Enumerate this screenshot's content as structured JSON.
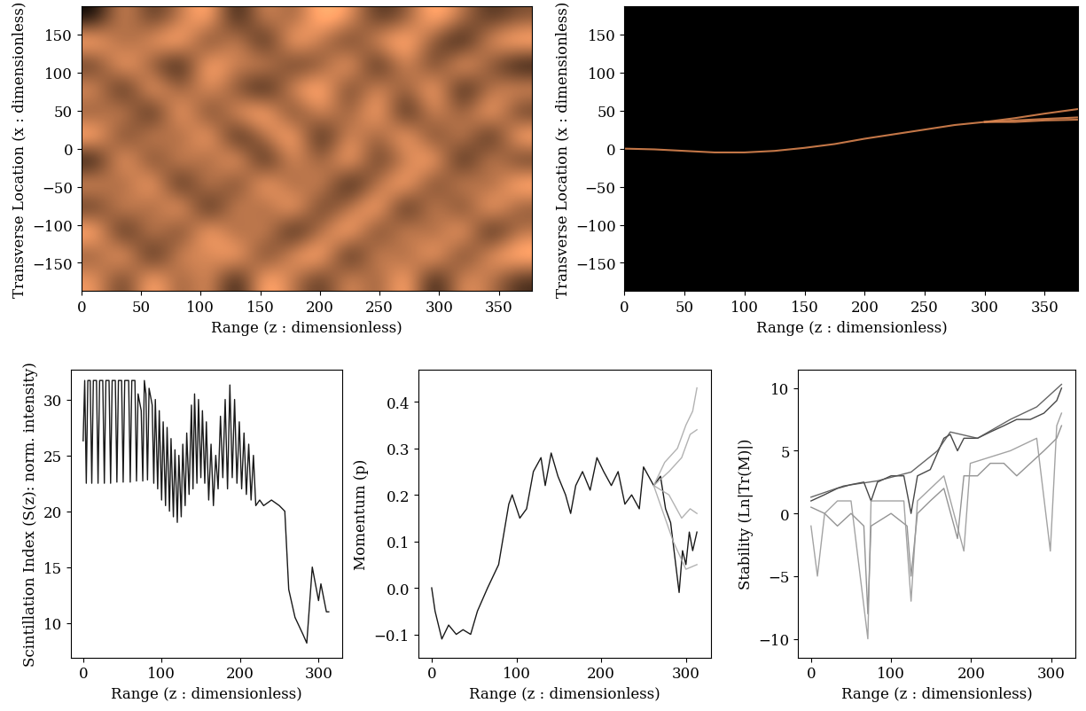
{
  "chart_data": [
    {
      "type": "heatmap",
      "x_label": "Range (z : dimensionless)",
      "y_label": "Transverse Location (x : dimensionless)",
      "xlim": [
        0,
        378
      ],
      "ylim": [
        -187,
        187
      ],
      "xticks": [
        0,
        50,
        100,
        150,
        200,
        250,
        300,
        350
      ],
      "yticks": [
        {
          "value": -150,
          "label": "−150"
        },
        {
          "value": -100,
          "label": "−100"
        },
        {
          "value": -50,
          "label": "−50"
        },
        0,
        50,
        100,
        150
      ],
      "cells": [
        [
          0.7,
          0.4,
          0.8,
          0.5,
          0.7,
          0.3,
          0.8,
          0.6,
          0.4,
          0.7,
          0.5,
          0.8,
          0.3,
          0.7,
          0.6,
          0.4
        ],
        [
          0.5,
          0.8,
          0.3,
          0.7,
          0.6,
          0.8,
          0.4,
          0.7,
          0.8,
          0.3,
          0.7,
          0.5,
          0.8,
          0.4,
          0.7,
          0.8
        ],
        [
          0.8,
          0.3,
          0.7,
          0.4,
          0.8,
          0.5,
          0.7,
          0.3,
          0.6,
          0.8,
          0.4,
          0.7,
          0.5,
          0.8,
          0.3,
          0.6
        ],
        [
          0.4,
          0.7,
          0.5,
          0.8,
          0.3,
          0.7,
          0.5,
          0.8,
          0.4,
          0.6,
          0.8,
          0.3,
          0.7,
          0.4,
          0.8,
          0.5
        ],
        [
          0.7,
          0.5,
          0.8,
          0.3,
          0.7,
          0.4,
          0.8,
          0.5,
          0.7,
          0.3,
          0.6,
          0.8,
          0.4,
          0.7,
          0.5,
          0.8
        ],
        [
          0.3,
          0.8,
          0.4,
          0.7,
          0.5,
          0.8,
          0.3,
          0.7,
          0.5,
          0.8,
          0.4,
          0.6,
          0.8,
          0.3,
          0.7,
          0.4
        ],
        [
          0.8,
          0.4,
          0.7,
          0.5,
          0.8,
          0.3,
          0.6,
          0.8,
          0.3,
          0.7,
          0.5,
          0.8,
          0.4,
          0.7,
          0.3,
          0.8
        ],
        [
          0.5,
          0.7,
          0.3,
          0.8,
          0.4,
          0.7,
          0.8,
          0.4,
          0.7,
          0.5,
          0.8,
          0.3,
          0.7,
          0.5,
          0.8,
          0.4
        ],
        [
          0.7,
          0.3,
          0.8,
          0.5,
          0.7,
          0.5,
          0.3,
          0.7,
          0.8,
          0.4,
          0.7,
          0.5,
          0.8,
          0.3,
          0.6,
          0.7
        ],
        [
          0.4,
          0.8,
          0.5,
          0.3,
          0.8,
          0.6,
          0.7,
          0.4,
          0.5,
          0.8,
          0.3,
          0.7,
          0.4,
          0.8,
          0.5,
          0.3
        ],
        [
          0.8,
          0.5,
          0.7,
          0.8,
          0.4,
          0.7,
          0.3,
          0.8,
          0.6,
          0.4,
          0.7,
          0.8,
          0.5,
          0.3,
          0.7,
          0.8
        ],
        [
          0.3,
          0.7,
          0.4,
          0.6,
          0.8,
          0.3,
          0.7,
          0.5,
          0.8,
          0.7,
          0.4,
          0.5,
          0.8,
          0.6,
          0.4,
          0.5
        ]
      ]
    },
    {
      "type": "line",
      "x_label": "Range (z : dimensionless)",
      "y_label": "Transverse Location (x : dimensionless)",
      "xlim": [
        0,
        378
      ],
      "ylim": [
        -187,
        187
      ],
      "xticks": [
        0,
        50,
        100,
        150,
        200,
        250,
        300,
        350
      ],
      "yticks": [
        {
          "value": -150,
          "label": "−150"
        },
        {
          "value": -100,
          "label": "−100"
        },
        {
          "value": -50,
          "label": "−50"
        },
        0,
        50,
        100,
        150
      ],
      "series": [
        {
          "color": "#d9844f",
          "x": [
            0,
            25,
            50,
            75,
            100,
            125,
            150,
            175,
            200,
            225,
            250,
            275,
            300,
            325,
            350,
            378
          ],
          "values": [
            0,
            -1,
            -3,
            -5,
            -5,
            -3,
            1,
            6,
            13,
            19,
            25,
            31,
            35,
            37,
            39,
            41
          ]
        },
        {
          "color": "#d9844f",
          "x": [
            300,
            325,
            350,
            378
          ],
          "values": [
            35,
            40,
            46,
            52
          ]
        },
        {
          "color": "#d9844f",
          "x": [
            300,
            325,
            350,
            378
          ],
          "values": [
            35,
            35,
            37,
            38
          ]
        }
      ]
    },
    {
      "type": "line",
      "x_label": "Range (z : dimensionless)",
      "y_label": "Scintillation Index (S(z): norm. intensity)",
      "xlim": [
        -16,
        330
      ],
      "ylim": [
        6.9,
        32.7
      ],
      "xticks": [
        0,
        100,
        200,
        300
      ],
      "yticks": [
        10,
        15,
        20,
        25,
        30
      ],
      "series": [
        {
          "color": "#000000",
          "x": [
            0,
            2,
            4,
            6,
            9,
            11,
            13,
            17,
            19,
            21,
            25,
            27,
            29,
            33,
            35,
            37,
            41,
            43,
            45,
            49,
            51,
            53,
            58,
            60,
            62,
            66,
            68,
            70,
            74,
            76,
            78,
            80,
            82,
            84,
            88,
            90,
            92,
            95,
            97,
            100,
            102,
            105,
            107,
            110,
            112,
            115,
            117,
            120,
            122,
            125,
            127,
            130,
            132,
            135,
            138,
            140,
            142,
            145,
            147,
            150,
            152,
            155,
            157,
            160,
            163,
            166,
            169,
            172,
            175,
            178,
            181,
            184,
            187,
            190,
            193,
            196,
            199,
            202,
            205,
            208,
            211,
            214,
            217,
            220,
            225,
            230,
            240,
            250,
            257,
            262,
            270,
            280,
            285,
            292,
            300,
            303,
            310,
            313
          ],
          "values": [
            26.3,
            31.7,
            22.5,
            31.7,
            31.7,
            22.5,
            31.7,
            31.7,
            22.5,
            31.7,
            31.7,
            22.5,
            31.7,
            31.7,
            22.5,
            31.7,
            31.7,
            22.6,
            31.7,
            31.7,
            22.6,
            31.7,
            31.7,
            22.6,
            31.7,
            31.7,
            22.7,
            30.5,
            29.0,
            22.7,
            31.7,
            30.5,
            22.8,
            31.0,
            29.5,
            22.5,
            30.0,
            22.0,
            29.0,
            21.0,
            28.0,
            20.5,
            27.5,
            20.0,
            26.5,
            19.5,
            25.5,
            19.0,
            25.0,
            19.5,
            26.0,
            20.5,
            27.0,
            21.5,
            29.5,
            22.0,
            30.5,
            22.5,
            30.0,
            23.0,
            29.0,
            22.5,
            28.0,
            21.0,
            26.0,
            20.5,
            25.0,
            22.0,
            28.5,
            23.0,
            30.0,
            22.0,
            31.3,
            23.0,
            30.0,
            22.5,
            28.0,
            22.0,
            27.0,
            21.5,
            26.0,
            21.0,
            25.0,
            20.5,
            21.0,
            20.5,
            21.0,
            20.5,
            20.0,
            13.0,
            10.5,
            9.0,
            8.2,
            15.0,
            12.0,
            13.5,
            11.0,
            11.0
          ]
        }
      ]
    },
    {
      "type": "line",
      "x_label": "Range (z : dimensionless)",
      "y_label": "Momentum (p)",
      "xlim": [
        -16,
        330
      ],
      "ylim": [
        -0.15,
        0.47
      ],
      "xticks": [
        0,
        100,
        200,
        300
      ],
      "yticks": [
        {
          "value": -0.1,
          "label": "−0.1"
        },
        0.0,
        0.1,
        0.2,
        0.3,
        0.4
      ],
      "series": [
        {
          "color": "#000000",
          "x": [
            0,
            4,
            12,
            20,
            29,
            37,
            46,
            54,
            66,
            79,
            91,
            95,
            104,
            112,
            120,
            129,
            134,
            141,
            149,
            158,
            164,
            170,
            178,
            187,
            195,
            203,
            212,
            220,
            228,
            236,
            245,
            250,
            262,
            270,
            276,
            282,
            288,
            292,
            296,
            300,
            304,
            308,
            313
          ],
          "values": [
            0.0,
            -0.05,
            -0.11,
            -0.08,
            -0.1,
            -0.09,
            -0.1,
            -0.05,
            0.0,
            0.05,
            0.18,
            0.2,
            0.15,
            0.17,
            0.25,
            0.28,
            0.22,
            0.29,
            0.24,
            0.2,
            0.16,
            0.22,
            0.25,
            0.21,
            0.28,
            0.25,
            0.22,
            0.25,
            0.18,
            0.2,
            0.17,
            0.26,
            0.22,
            0.24,
            0.17,
            0.14,
            0.05,
            -0.01,
            0.08,
            0.05,
            0.12,
            0.08,
            0.12
          ]
        },
        {
          "color": "#aaaaaa",
          "x": [
            262,
            275,
            290,
            300,
            308,
            313
          ],
          "values": [
            0.22,
            0.27,
            0.3,
            0.35,
            0.38,
            0.43
          ]
        },
        {
          "color": "#aaaaaa",
          "x": [
            262,
            280,
            295,
            305,
            313
          ],
          "values": [
            0.22,
            0.25,
            0.28,
            0.33,
            0.34
          ]
        },
        {
          "color": "#aaaaaa",
          "x": [
            262,
            280,
            295,
            305,
            313
          ],
          "values": [
            0.22,
            0.2,
            0.15,
            0.17,
            0.16
          ]
        },
        {
          "color": "#aaaaaa",
          "x": [
            262,
            285,
            300,
            313
          ],
          "values": [
            0.22,
            0.1,
            0.04,
            0.05
          ]
        }
      ]
    },
    {
      "type": "line",
      "x_label": "Range (z : dimensionless)",
      "y_label": "Stability (Ln|Tr(M)|)",
      "xlim": [
        -16,
        330
      ],
      "ylim": [
        -11.5,
        11.5
      ],
      "xticks": [
        0,
        100,
        200,
        300
      ],
      "yticks": [
        {
          "value": -10,
          "label": "−10"
        },
        {
          "value": -5,
          "label": "−5"
        },
        0,
        5,
        10
      ],
      "series": [
        {
          "color": "#333333",
          "x": [
            0,
            17,
            33,
            50,
            66,
            75,
            83,
            100,
            116,
            125,
            133,
            149,
            166,
            174,
            183,
            191,
            208,
            224,
            241,
            257,
            274,
            291,
            307,
            313
          ],
          "values": [
            1,
            1.5,
            2,
            2.3,
            2.5,
            1,
            2.5,
            3,
            3,
            0,
            3,
            3.5,
            6,
            6.3,
            5,
            6,
            6,
            6.5,
            7,
            7.5,
            7.5,
            8,
            9,
            10
          ]
        },
        {
          "color": "#888888",
          "x": [
            0,
            17,
            33,
            50,
            66,
            71,
            75,
            100,
            120,
            125,
            133,
            149,
            166,
            183,
            191,
            208,
            224,
            241,
            257,
            274,
            291,
            307,
            313
          ],
          "values": [
            0.5,
            0,
            -1,
            0,
            -1,
            -8,
            -1,
            0,
            -1,
            -5,
            0,
            1,
            2,
            -2,
            3,
            3,
            4,
            4,
            3,
            4,
            5,
            6,
            7
          ]
        },
        {
          "color": "#999999",
          "x": [
            0,
            8,
            17,
            33,
            50,
            71,
            75,
            116,
            125,
            133,
            166,
            191,
            199,
            249,
            282,
            299,
            307,
            313
          ],
          "values": [
            -1,
            -5,
            0,
            1,
            1,
            -10,
            1,
            1,
            -7,
            1,
            3,
            -3,
            4,
            5,
            6,
            -3,
            7,
            8
          ]
        },
        {
          "color": "#555555",
          "x": [
            0,
            41,
            83,
            125,
            158,
            174,
            208,
            249,
            282,
            313
          ],
          "values": [
            1.3,
            2.2,
            2.6,
            3.3,
            5,
            6.5,
            6,
            7.5,
            8.5,
            10.3
          ]
        }
      ]
    }
  ]
}
